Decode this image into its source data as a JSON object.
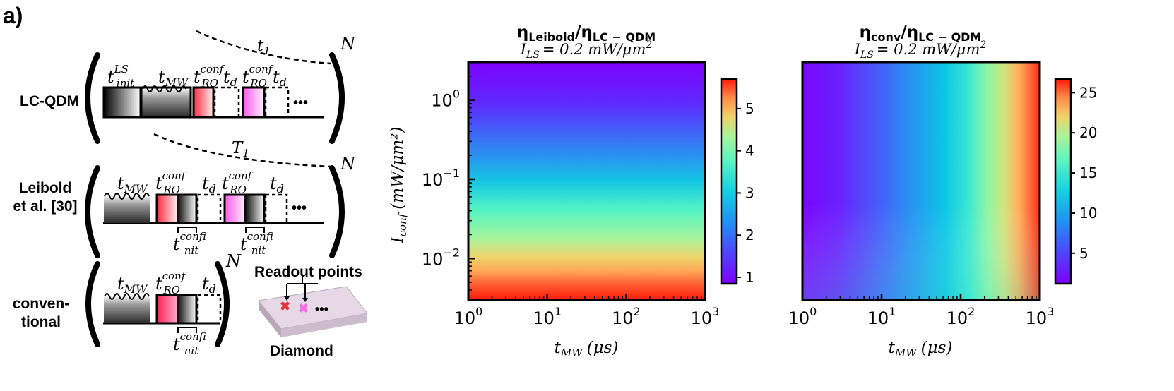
{
  "panel_label": "a)",
  "rows": [
    {
      "label_lines": [
        "LC-QDM"
      ],
      "exponent": "N",
      "decay": "T1"
    },
    {
      "label_lines": [
        "Leibold",
        "et al. [30]"
      ],
      "exponent": "N",
      "decay": "T1"
    },
    {
      "label_lines": [
        "conven-",
        "tional"
      ],
      "exponent": "N"
    }
  ],
  "pulse_labels": {
    "t": "t",
    "init": "init",
    "LS": "LS",
    "MW": "MW",
    "RO": "RO",
    "conf": "conf",
    "d": "d",
    "ellipsis": "•••"
  },
  "inset": {
    "readout_label": "Readout points",
    "diamond_label": "Diamond"
  },
  "colors": {
    "readout_red": "#e8303a",
    "readout_pink": "#ee70e0",
    "diamond": "#e2d4e2"
  },
  "chart_data": [
    {
      "type": "heatmap",
      "title_num": "η",
      "title_num_sub": "Leibold",
      "title_den": "η",
      "title_den_sub": "LC − QDM",
      "subtitle_var": "I",
      "subtitle_sub": "LS",
      "subtitle_rest": "= 0.2 mW/μm",
      "subtitle_sup": "2",
      "xlabel_var": "t",
      "xlabel_sub": "MW",
      "xlabel_unit": "(μs)",
      "ylabel_var": "I",
      "ylabel_sub": "conf",
      "ylabel_unit": "(mW/μm²)",
      "x_scale": "log",
      "y_scale": "log",
      "xlim": [
        1,
        1000
      ],
      "ylim": [
        0.003,
        3
      ],
      "x_ticks": [
        {
          "base": "10",
          "exp": "0"
        },
        {
          "base": "10",
          "exp": "1"
        },
        {
          "base": "10",
          "exp": "2"
        },
        {
          "base": "10",
          "exp": "3"
        }
      ],
      "y_ticks": [
        {
          "base": "10",
          "exp": "0"
        },
        {
          "base": "10",
          "exp": "−1"
        },
        {
          "base": "10",
          "exp": "−2"
        }
      ],
      "colormap": "rainbow",
      "colorbar_range": [
        0.85,
        5.7
      ],
      "colorbar_ticks": [
        "1",
        "2",
        "3",
        "4",
        "5"
      ],
      "trend": "varies only with I_conf: ~5.7 at I_conf≈0.003 falling to ~1 at I_conf≥1"
    },
    {
      "type": "heatmap",
      "title_num": "η",
      "title_num_sub": "conv",
      "title_den": "η",
      "title_den_sub": "LC − QDM",
      "subtitle_var": "I",
      "subtitle_sub": "LS",
      "subtitle_rest": "= 0.2 mW/μm",
      "subtitle_sup": "2",
      "xlabel_var": "t",
      "xlabel_sub": "MW",
      "xlabel_unit": "(μs)",
      "x_scale": "log",
      "y_scale": "log",
      "xlim": [
        1,
        1000
      ],
      "ylim": [
        0.003,
        3
      ],
      "x_ticks": [
        {
          "base": "10",
          "exp": "0"
        },
        {
          "base": "10",
          "exp": "1"
        },
        {
          "base": "10",
          "exp": "2"
        },
        {
          "base": "10",
          "exp": "3"
        }
      ],
      "colormap": "rainbow",
      "colorbar_range": [
        1.2,
        26.7
      ],
      "colorbar_ticks": [
        "5",
        "10",
        "15",
        "20",
        "25"
      ],
      "trend": "increases with t_MW from ~1.2 at t_MW=1 to ~26 at t_MW=1000"
    }
  ]
}
